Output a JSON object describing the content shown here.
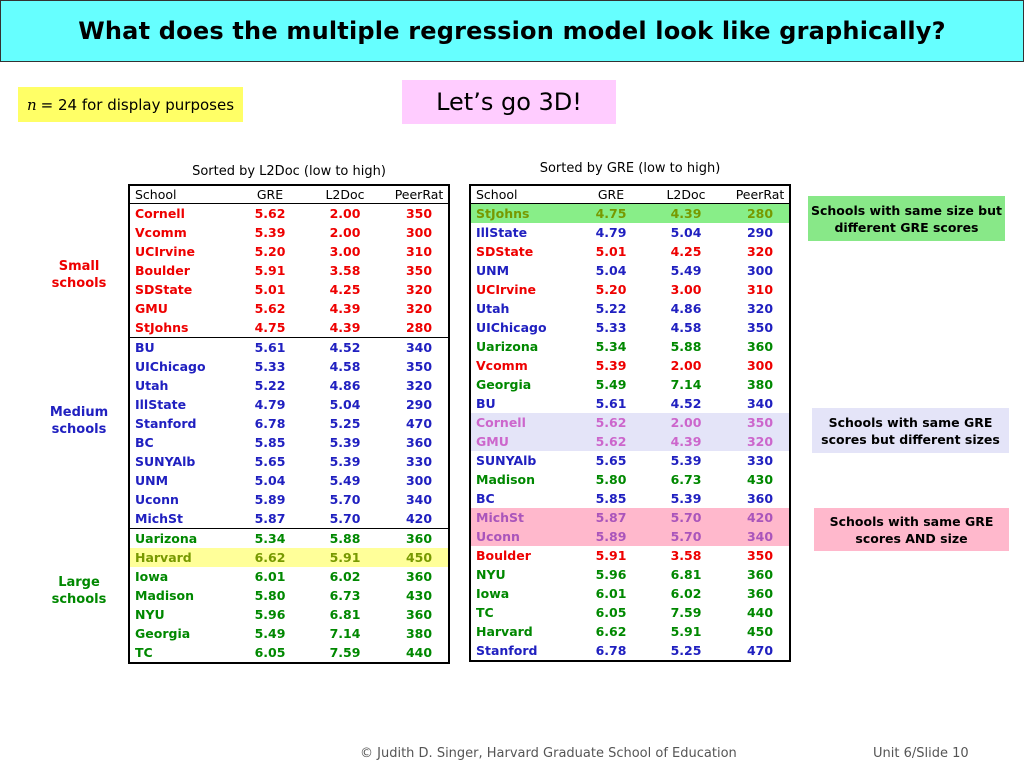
{
  "title": "What does the multiple regression model look like graphically?",
  "note_n": {
    "var": "n",
    "text": " = 24 for display purposes"
  },
  "go3d": "Let’s go 3D!",
  "left_table": {
    "title": "Sorted by L2Doc (low to high)",
    "headers": [
      "School",
      "GRE",
      "L2Doc",
      "PeerRat"
    ],
    "groups": [
      {
        "label": "Small schools",
        "color": "#ee0000",
        "rows": [
          [
            "Cornell",
            "5.62",
            "2.00",
            "350"
          ],
          [
            "Vcomm",
            "5.39",
            "2.00",
            "300"
          ],
          [
            "UCIrvine",
            "5.20",
            "3.00",
            "310"
          ],
          [
            "Boulder",
            "5.91",
            "3.58",
            "350"
          ],
          [
            "SDState",
            "5.01",
            "4.25",
            "320"
          ],
          [
            "GMU",
            "5.62",
            "4.39",
            "320"
          ],
          [
            "StJohns",
            "4.75",
            "4.39",
            "280"
          ]
        ]
      },
      {
        "label": "Medium schools",
        "color": "#2020c0",
        "rows": [
          [
            "BU",
            "5.61",
            "4.52",
            "340"
          ],
          [
            "UIChicago",
            "5.33",
            "4.58",
            "350"
          ],
          [
            "Utah",
            "5.22",
            "4.86",
            "320"
          ],
          [
            "IllState",
            "4.79",
            "5.04",
            "290"
          ],
          [
            "Stanford",
            "6.78",
            "5.25",
            "470"
          ],
          [
            "BC",
            "5.85",
            "5.39",
            "360"
          ],
          [
            "SUNYAlb",
            "5.65",
            "5.39",
            "330"
          ],
          [
            "UNM",
            "5.04",
            "5.49",
            "300"
          ],
          [
            "Uconn",
            "5.89",
            "5.70",
            "340"
          ],
          [
            "MichSt",
            "5.87",
            "5.70",
            "420"
          ]
        ]
      },
      {
        "label": "Large schools",
        "color": "#008800",
        "rows": [
          [
            "Uarizona",
            "5.34",
            "5.88",
            "360"
          ],
          [
            "Harvard",
            "6.62",
            "5.91",
            "450"
          ],
          [
            "Iowa",
            "6.01",
            "6.02",
            "360"
          ],
          [
            "Madison",
            "5.80",
            "6.73",
            "430"
          ],
          [
            "NYU",
            "5.96",
            "6.81",
            "360"
          ],
          [
            "Georgia",
            "5.49",
            "7.14",
            "380"
          ],
          [
            "TC",
            "6.05",
            "7.59",
            "440"
          ]
        ]
      }
    ]
  },
  "right_table": {
    "title": "Sorted by GRE (low to high)",
    "headers": [
      "School",
      "GRE",
      "L2Doc",
      "PeerRat"
    ],
    "rows": [
      [
        "StJohns",
        "4.75",
        "4.39",
        "280",
        "red",
        "green"
      ],
      [
        "IllState",
        "4.79",
        "5.04",
        "290",
        "blue",
        ""
      ],
      [
        "SDState",
        "5.01",
        "4.25",
        "320",
        "red",
        ""
      ],
      [
        "UNM",
        "5.04",
        "5.49",
        "300",
        "blue",
        ""
      ],
      [
        "UCIrvine",
        "5.20",
        "3.00",
        "310",
        "red",
        ""
      ],
      [
        "Utah",
        "5.22",
        "4.86",
        "320",
        "blue",
        ""
      ],
      [
        "UIChicago",
        "5.33",
        "4.58",
        "350",
        "blue",
        ""
      ],
      [
        "Uarizona",
        "5.34",
        "5.88",
        "360",
        "green",
        ""
      ],
      [
        "Vcomm",
        "5.39",
        "2.00",
        "300",
        "red",
        ""
      ],
      [
        "Georgia",
        "5.49",
        "7.14",
        "380",
        "green",
        ""
      ],
      [
        "BU",
        "5.61",
        "4.52",
        "340",
        "blue",
        ""
      ],
      [
        "Cornell",
        "5.62",
        "2.00",
        "350",
        "red",
        "lav"
      ],
      [
        "GMU",
        "5.62",
        "4.39",
        "320",
        "red",
        "lav"
      ],
      [
        "SUNYAlb",
        "5.65",
        "5.39",
        "330",
        "blue",
        ""
      ],
      [
        "Madison",
        "5.80",
        "6.73",
        "430",
        "green",
        ""
      ],
      [
        "BC",
        "5.85",
        "5.39",
        "360",
        "blue",
        ""
      ],
      [
        "MichSt",
        "5.87",
        "5.70",
        "420",
        "blue",
        "pink"
      ],
      [
        "Uconn",
        "5.89",
        "5.70",
        "340",
        "blue",
        "pink"
      ],
      [
        "Boulder",
        "5.91",
        "3.58",
        "350",
        "red",
        ""
      ],
      [
        "NYU",
        "5.96",
        "6.81",
        "360",
        "green",
        ""
      ],
      [
        "Iowa",
        "6.01",
        "6.02",
        "360",
        "green",
        ""
      ],
      [
        "TC",
        "6.05",
        "7.59",
        "440",
        "green",
        ""
      ],
      [
        "Harvard",
        "6.62",
        "5.91",
        "450",
        "green",
        ""
      ],
      [
        "Stanford",
        "6.78",
        "5.25",
        "470",
        "blue",
        ""
      ]
    ]
  },
  "callouts": [
    {
      "text": "Schools with same size but different GRE scores",
      "bg": "#88e888"
    },
    {
      "text": "Schools with same GRE scores but different sizes",
      "bg": "#e4e4f8"
    },
    {
      "text": "Schools with same GRE scores AND size",
      "bg": "#ffb8cc"
    }
  ],
  "footer": {
    "copyright": "© Judith D. Singer, Harvard Graduate School of Education",
    "slide": "Unit 6/Slide 10"
  }
}
